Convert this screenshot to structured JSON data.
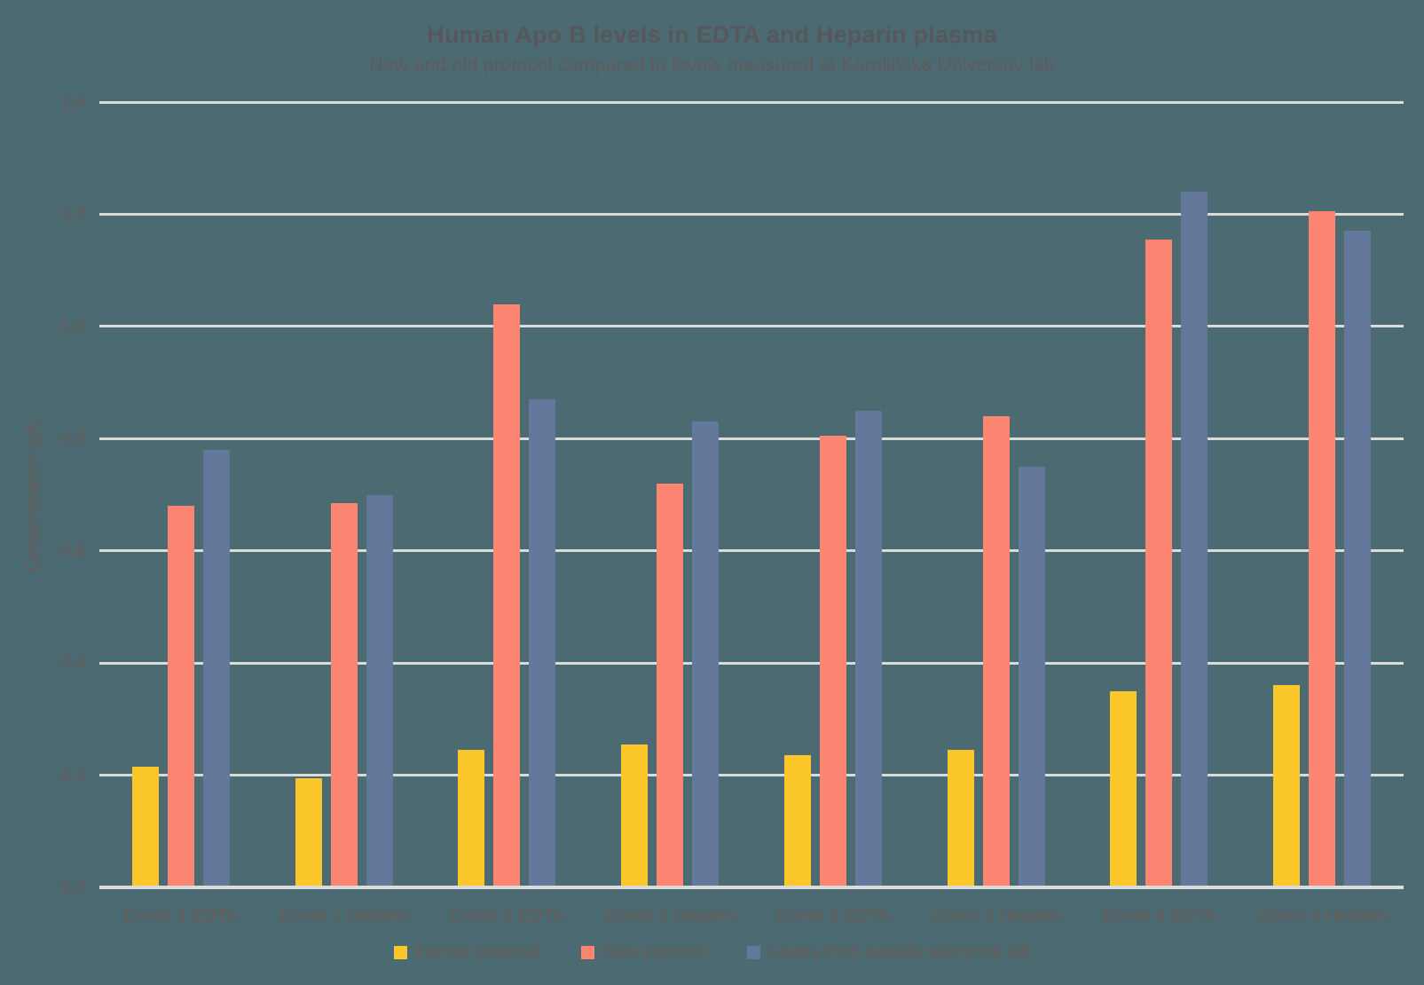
{
  "chart_data": {
    "type": "bar",
    "title": "Human Apo B levels in EDTA and Heparin plasma",
    "subtitle": "New and old protocol compared to levels measured at Karolinska University lab",
    "ylabel": "Concentration (g/l)",
    "xlabel": "",
    "ylim": [
      0,
      1.4
    ],
    "ytick_step": 0.2,
    "ytick_labels": [
      "0,0",
      "0,2",
      "0,4",
      "0,6",
      "0,8",
      "1,0",
      "1,2",
      "1,4"
    ],
    "grid": true,
    "legend_position": "bottom",
    "categories": [
      "Donor 1 EDTA",
      "Donor 1 Heparin",
      "Donor 2 EDTA",
      "Donor 2 Heparin",
      "Donor 3 EDTA",
      "Donor 3 Heparin",
      "Donor 4 EDTA",
      "Donor 4 Heparin"
    ],
    "series": [
      {
        "name": "Former protocol",
        "color": "#FCC72A",
        "values": [
          0.215,
          0.195,
          0.245,
          0.255,
          0.235,
          0.245,
          0.35,
          0.36
        ]
      },
      {
        "name": "New protocol",
        "color": "#FC8672",
        "values": [
          0.68,
          0.685,
          1.04,
          0.72,
          0.805,
          0.84,
          1.155,
          1.205
        ]
      },
      {
        "name": "Levels from outside reference lab",
        "color": "#64789B",
        "values": [
          0.78,
          0.7,
          0.87,
          0.83,
          0.85,
          0.75,
          1.24,
          1.17
        ]
      }
    ]
  },
  "colors": {
    "background": "#4C6A72",
    "gridline": "#DBDBD9",
    "baseline": "#DBDBD9",
    "title_text": "#56575B",
    "subtitle_text": "#5E5B5E",
    "axis_text": "#6B5E5A"
  }
}
